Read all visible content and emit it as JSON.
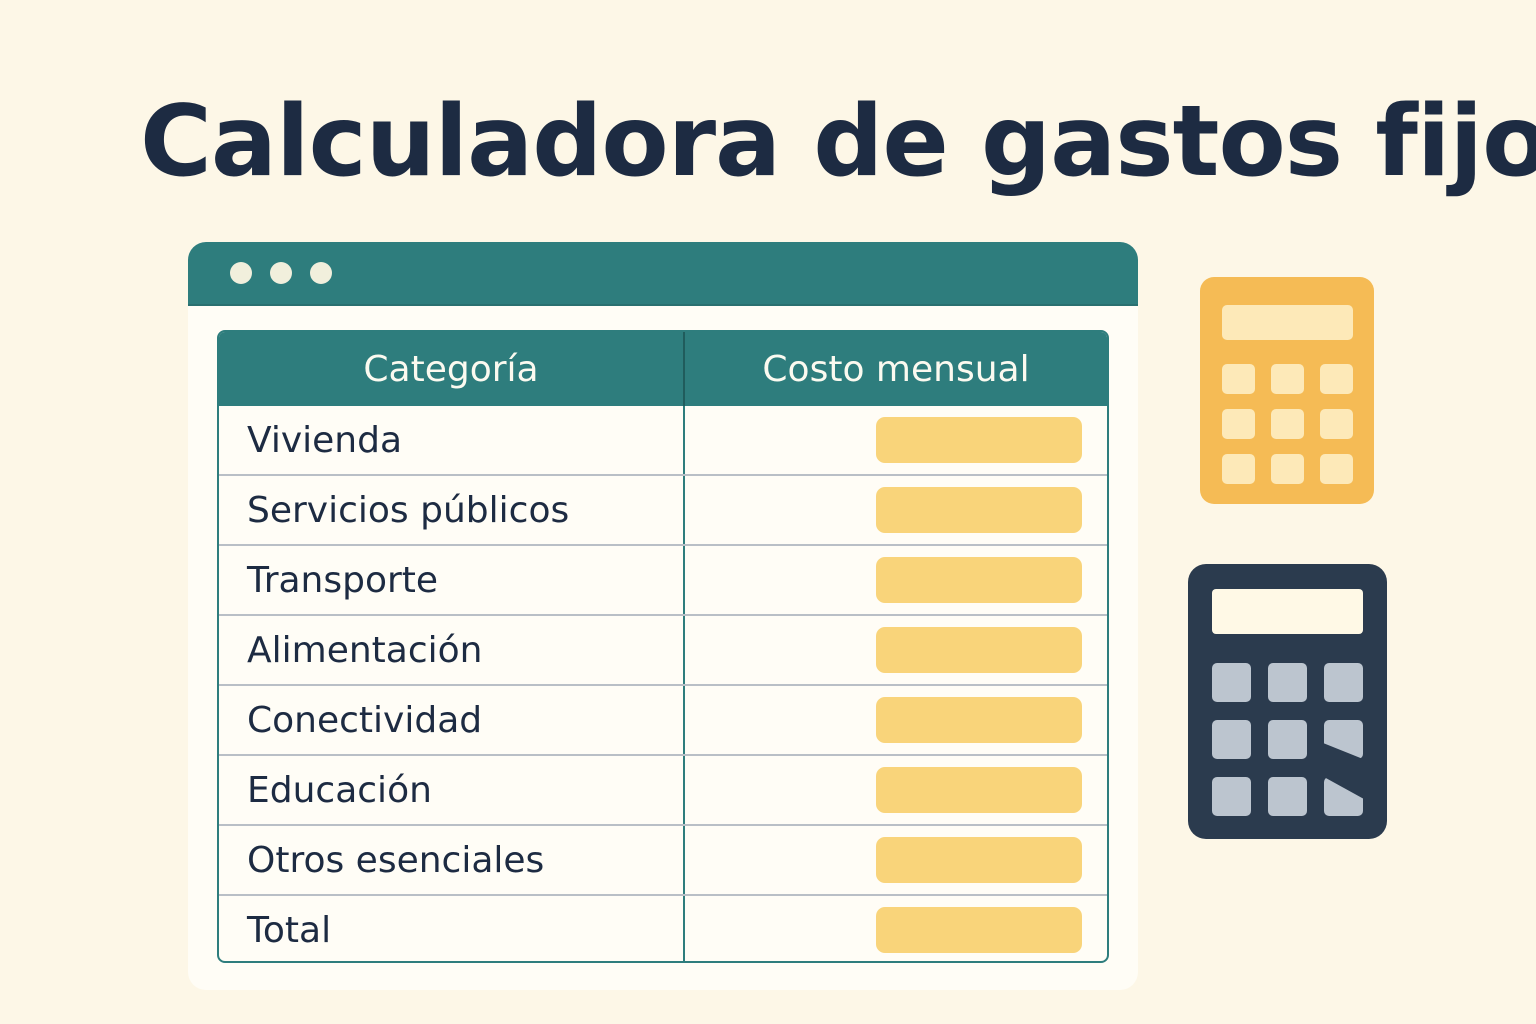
{
  "page": {
    "title": "Calculadora de gastos fijos"
  },
  "table": {
    "headers": {
      "category": "Categoría",
      "monthly_cost": "Costo mensual"
    },
    "rows": [
      {
        "label": "Vivienda",
        "value": ""
      },
      {
        "label": "Servicios públicos",
        "value": ""
      },
      {
        "label": "Transporte",
        "value": ""
      },
      {
        "label": "Alimentación",
        "value": ""
      },
      {
        "label": "Conectividad",
        "value": ""
      },
      {
        "label": "Educación",
        "value": ""
      },
      {
        "label": "Otros esenciales",
        "value": ""
      },
      {
        "label": "Total",
        "value": ""
      }
    ]
  },
  "icons": {
    "window_dots": [
      "window-dot-icon",
      "window-dot-icon",
      "window-dot-icon"
    ],
    "yellow_calculator": "calculator-icon",
    "dark_calculator": "calculator-icon"
  },
  "colors": {
    "background": "#fdf7e7",
    "accent_teal": "#2e7d7d",
    "input_yellow": "#f9d47a",
    "title_navy": "#1d2b42",
    "calculator_yellow": "#f5bb55",
    "calculator_dark": "#2b3b4e"
  }
}
